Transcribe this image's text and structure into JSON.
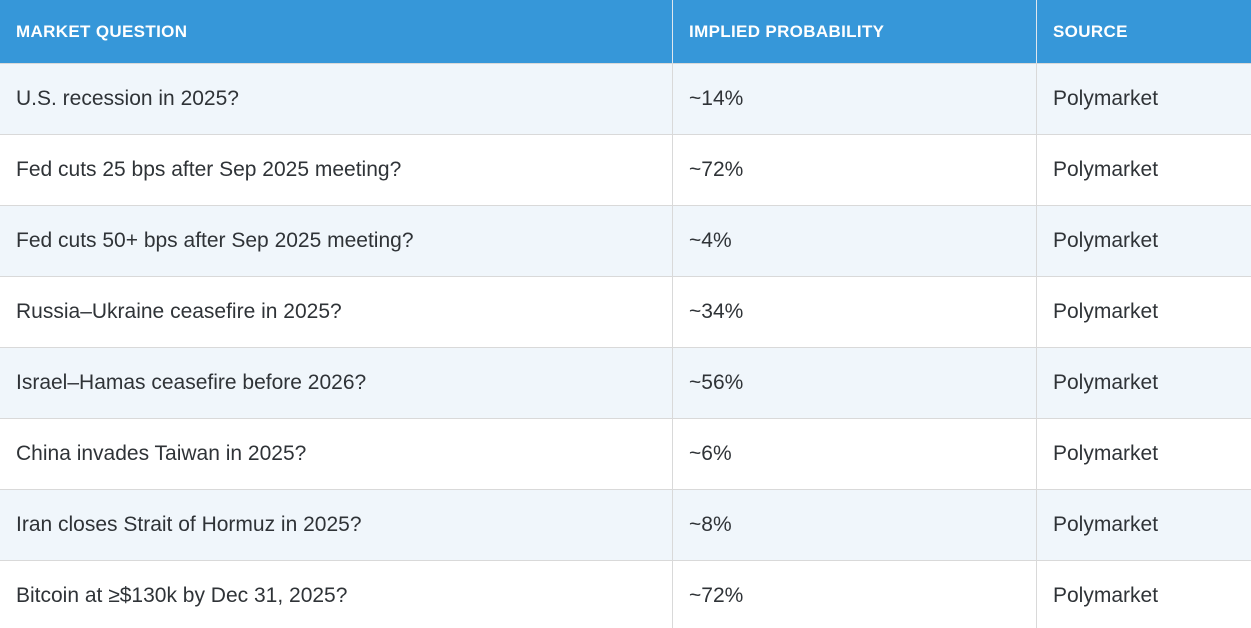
{
  "chart_data": {
    "type": "table",
    "title": "",
    "columns": [
      "MARKET QUESTION",
      "IMPLIED PROBABILITY",
      "SOURCE"
    ],
    "rows": [
      [
        "U.S. recession in 2025?",
        "~14%",
        "Polymarket"
      ],
      [
        "Fed cuts 25 bps after Sep 2025 meeting?",
        "~72%",
        "Polymarket"
      ],
      [
        "Fed cuts 50+ bps after Sep 2025 meeting?",
        "~4%",
        "Polymarket"
      ],
      [
        "Russia–Ukraine ceasefire in 2025?",
        "~34%",
        "Polymarket"
      ],
      [
        "Israel–Hamas ceasefire before 2026?",
        "~56%",
        "Polymarket"
      ],
      [
        "China invades Taiwan in 2025?",
        "~6%",
        "Polymarket"
      ],
      [
        "Iran closes Strait of Hormuz in 2025?",
        "~8%",
        "Polymarket"
      ],
      [
        "Bitcoin at ≥$130k by Dec 31, 2025?",
        "~72%",
        "Polymarket"
      ]
    ],
    "implied_probability_numeric_percent": [
      14,
      72,
      4,
      34,
      56,
      6,
      8,
      72
    ],
    "layout": {
      "striped_rows": true,
      "header_position": "top"
    }
  },
  "style": {
    "colors": {
      "header_bg": "#3697d9",
      "header_text": "#ffffff",
      "row_alt_bg": "#f0f6fb",
      "row_bg": "#ffffff",
      "border": "#d9d9d9",
      "body_text": "#2f3337"
    }
  }
}
